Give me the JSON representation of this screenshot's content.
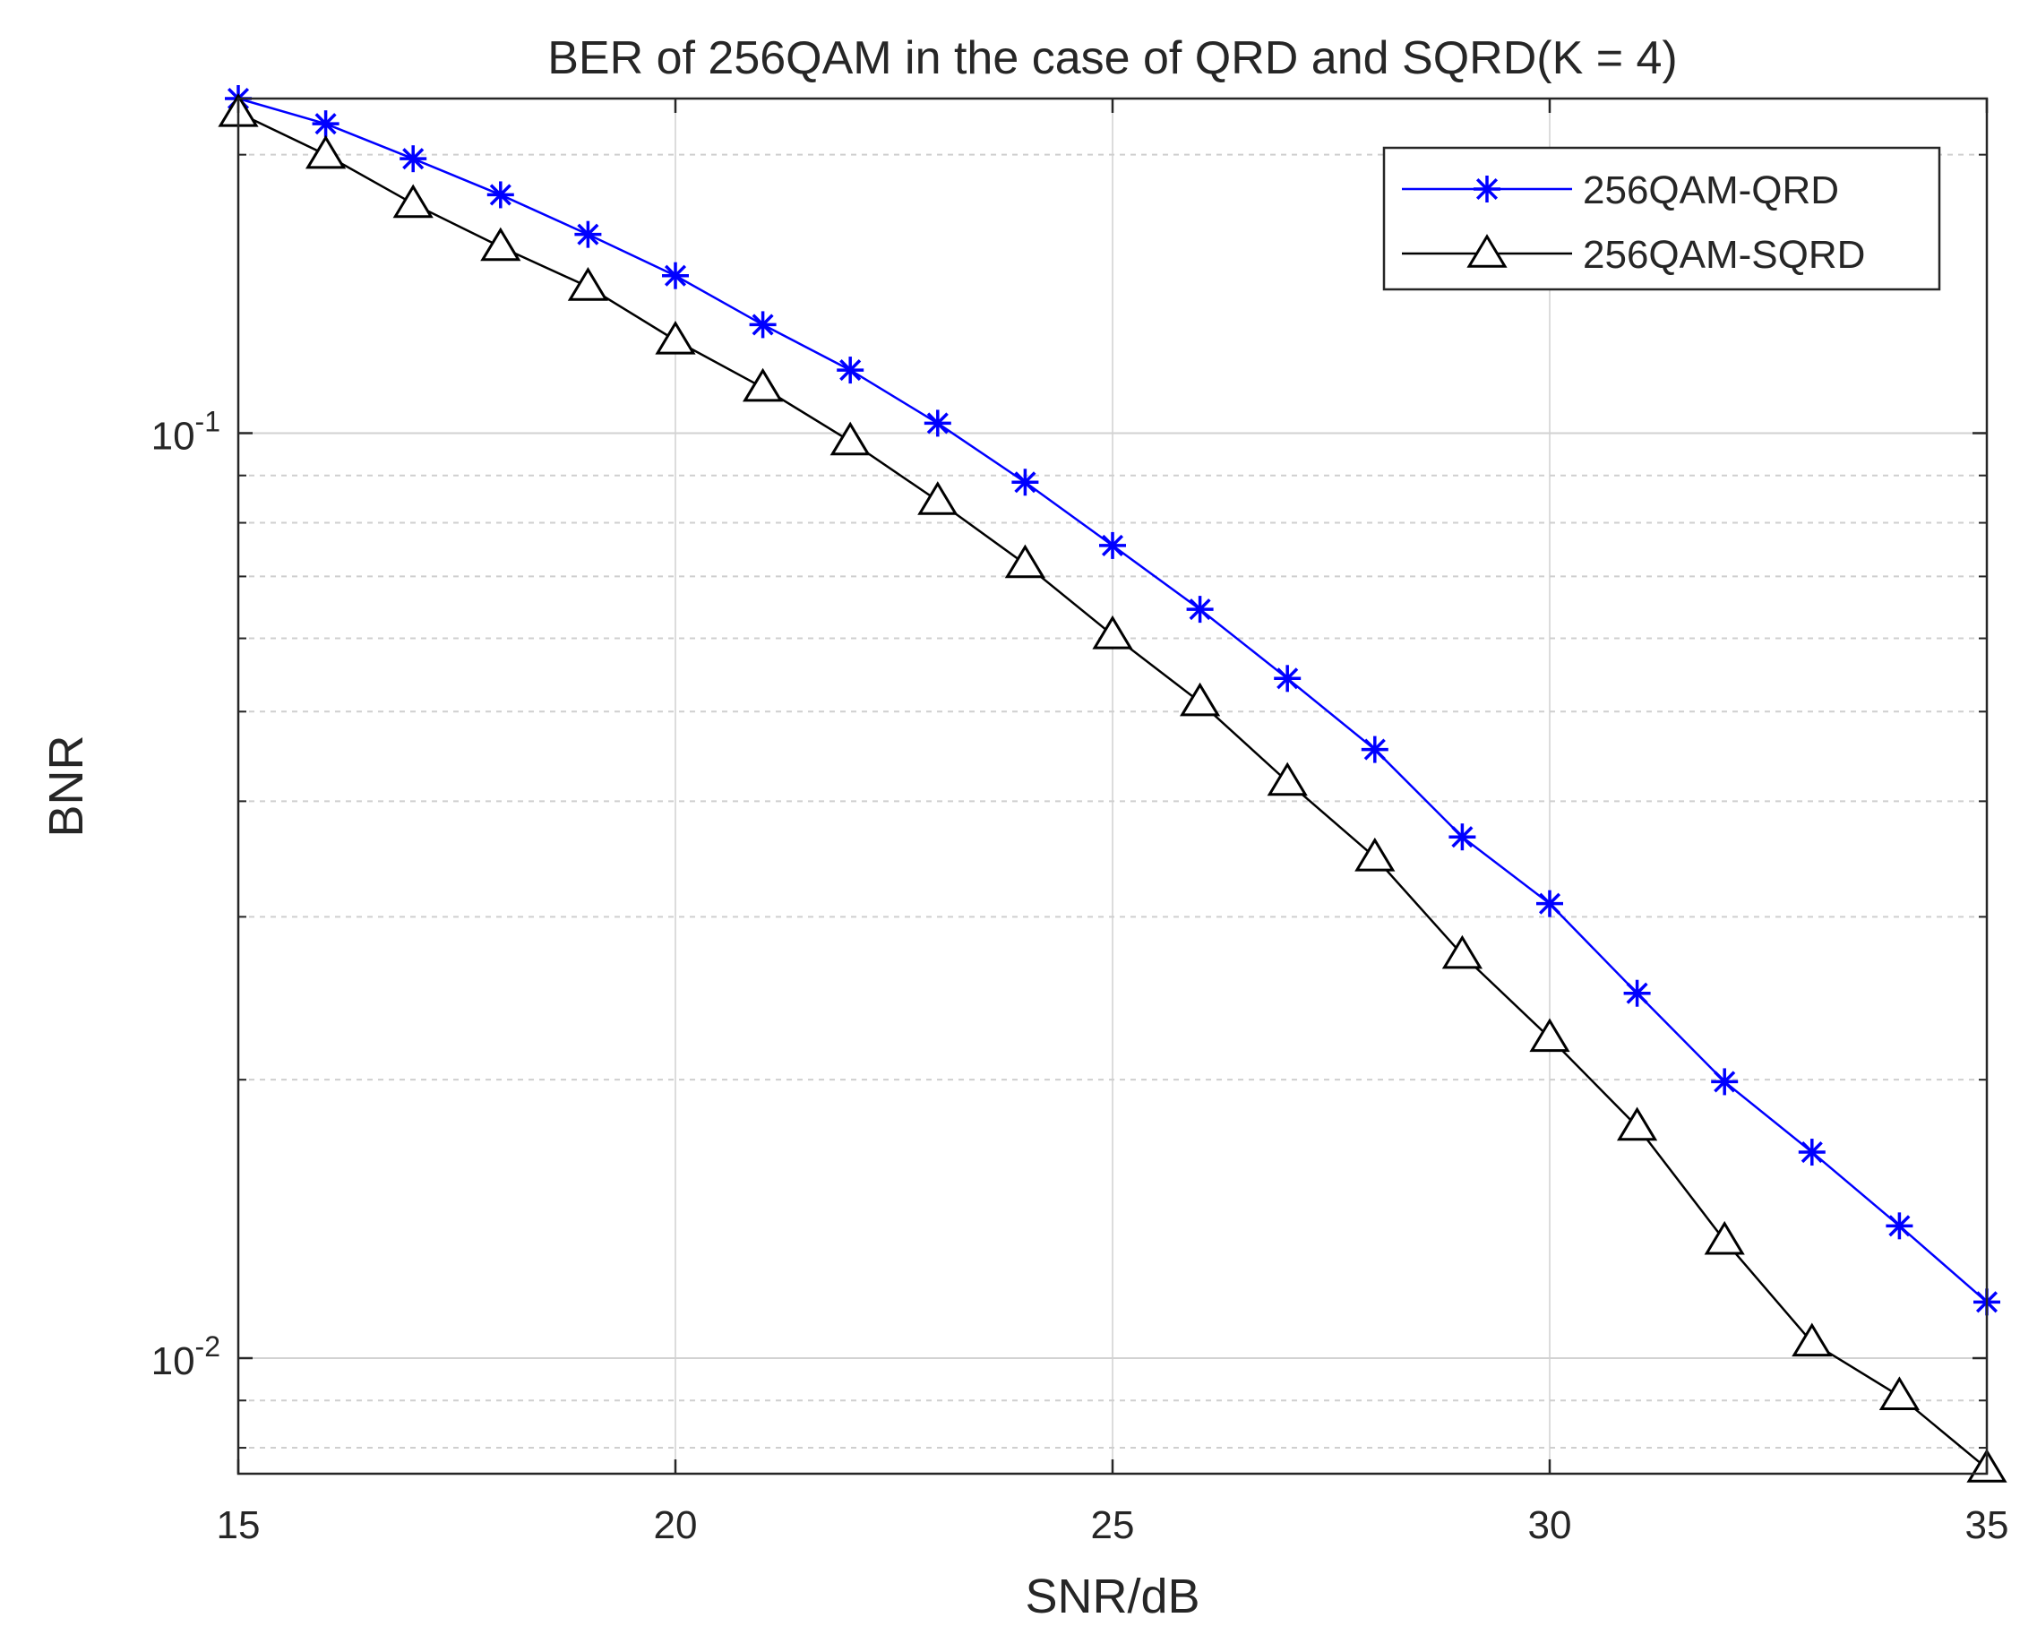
{
  "chart_data": {
    "type": "line",
    "title": "BER of 256QAM in the case of QRD and SQRD(K = 4)",
    "xlabel": "SNR/dB",
    "ylabel": "BNR",
    "xlim": [
      15,
      35
    ],
    "ylim": [
      0.0075,
      0.23
    ],
    "yscale": "log",
    "grid": true,
    "legend_position": "top-right",
    "x_ticks": [
      15,
      20,
      25,
      30,
      35
    ],
    "x_tick_labels": [
      "15",
      "20",
      "25",
      "30",
      "35"
    ],
    "y_tick_labels": [
      {
        "base": "10",
        "exp": "-1",
        "value": 0.1
      },
      {
        "base": "10",
        "exp": "-2",
        "value": 0.01
      }
    ],
    "x": [
      15,
      16,
      17,
      18,
      19,
      20,
      21,
      22,
      23,
      24,
      25,
      26,
      27,
      28,
      29,
      30,
      31,
      32,
      33,
      34,
      35
    ],
    "series": [
      {
        "name": "256QAM-QRD",
        "color": "#0000ff",
        "marker": "asterisk",
        "values": [
          0.23,
          0.216,
          0.198,
          0.181,
          0.164,
          0.148,
          0.131,
          0.117,
          0.1025,
          0.0885,
          0.0756,
          0.0645,
          0.0543,
          0.0455,
          0.0366,
          0.031,
          0.0248,
          0.0199,
          0.0167,
          0.0139,
          0.0115
        ]
      },
      {
        "name": "256QAM-SQRD",
        "color": "#000000",
        "marker": "triangle",
        "values": [
          0.222,
          0.2,
          0.177,
          0.159,
          0.144,
          0.126,
          0.112,
          0.098,
          0.0845,
          0.0722,
          0.0605,
          0.0512,
          0.042,
          0.0348,
          0.0273,
          0.0222,
          0.0178,
          0.0134,
          0.0104,
          0.0091,
          0.0076
        ]
      }
    ]
  }
}
